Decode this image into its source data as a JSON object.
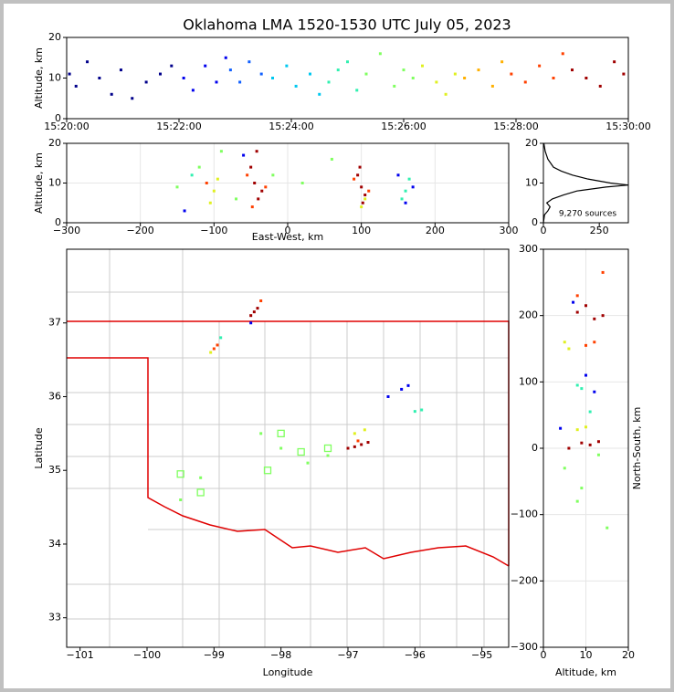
{
  "chart_data": [
    {
      "type": "scatter",
      "title": "Oklahoma LMA 1520-1530 UTC July 05, 2023",
      "ylabel": "Altitude, km",
      "xlim": [
        "15:20:00",
        "15:30:00"
      ],
      "xticks": [
        "15:20:00",
        "15:22:00",
        "15:24:00",
        "15:26:00",
        "15:28:00",
        "15:30:00"
      ],
      "ylim": [
        0,
        20
      ],
      "yticks": [
        0,
        10,
        20
      ],
      "series": [
        {
          "color": "#00008b",
          "x": [
            "15:20:03",
            "15:20:10",
            "15:20:22",
            "15:20:35",
            "15:20:48",
            "15:20:58",
            "15:21:10",
            "15:21:25",
            "15:21:40",
            "15:21:52"
          ],
          "y": [
            11,
            8,
            14,
            10,
            6,
            12,
            5,
            9,
            11,
            13
          ]
        },
        {
          "color": "#0000ee",
          "x": [
            "15:22:05",
            "15:22:15",
            "15:22:28",
            "15:22:40",
            "15:22:50"
          ],
          "y": [
            10,
            7,
            13,
            9,
            15
          ]
        },
        {
          "color": "#1060ff",
          "x": [
            "15:22:55",
            "15:23:05",
            "15:23:15",
            "15:23:28"
          ],
          "y": [
            12,
            9,
            14,
            11
          ]
        },
        {
          "color": "#00c8f0",
          "x": [
            "15:23:40",
            "15:23:55",
            "15:24:05",
            "15:24:20",
            "15:24:30"
          ],
          "y": [
            10,
            13,
            8,
            11,
            6
          ]
        },
        {
          "color": "#30f0b0",
          "x": [
            "15:24:40",
            "15:24:50",
            "15:25:00",
            "15:25:10"
          ],
          "y": [
            9,
            12,
            14,
            7
          ]
        },
        {
          "color": "#80ff60",
          "x": [
            "15:25:20",
            "15:25:35",
            "15:25:50",
            "15:26:00",
            "15:26:10"
          ],
          "y": [
            11,
            16,
            8,
            12,
            10
          ]
        },
        {
          "color": "#e0f020",
          "x": [
            "15:26:20",
            "15:26:35",
            "15:26:45",
            "15:26:55"
          ],
          "y": [
            13,
            9,
            6,
            11
          ]
        },
        {
          "color": "#ffb000",
          "x": [
            "15:27:05",
            "15:27:20",
            "15:27:35",
            "15:27:45"
          ],
          "y": [
            10,
            12,
            8,
            14
          ]
        },
        {
          "color": "#ff4000",
          "x": [
            "15:27:55",
            "15:28:10",
            "15:28:25",
            "15:28:40",
            "15:28:50"
          ],
          "y": [
            11,
            9,
            13,
            10,
            16
          ]
        },
        {
          "color": "#a00000",
          "x": [
            "15:29:00",
            "15:29:15",
            "15:29:30",
            "15:29:45",
            "15:29:55"
          ],
          "y": [
            12,
            10,
            8,
            14,
            11
          ]
        }
      ]
    },
    {
      "type": "scatter",
      "xlabel": "East-West, km",
      "ylabel": "Altitude, km",
      "xlim": [
        -300,
        300
      ],
      "xticks": [
        {
          "value": -300,
          "label": "−300"
        },
        {
          "value": -200,
          "label": "−200"
        },
        {
          "value": -100,
          "label": "−100"
        },
        0,
        100,
        200,
        300
      ],
      "ylim": [
        0,
        20
      ],
      "yticks": [
        0,
        10,
        20
      ],
      "grid": true,
      "series": [
        {
          "color": "#a00000",
          "x": [
            -45,
            -40,
            -50,
            -35,
            -42,
            100,
            95,
            105,
            98,
            102
          ],
          "y": [
            10,
            6,
            14,
            8,
            18,
            9,
            12,
            7,
            14,
            5
          ]
        },
        {
          "color": "#ff4000",
          "x": [
            -55,
            -30,
            -48,
            90,
            110,
            -110
          ],
          "y": [
            12,
            9,
            4,
            11,
            8,
            10
          ]
        },
        {
          "color": "#e0f020",
          "x": [
            -100,
            -95,
            -105,
            100,
            105
          ],
          "y": [
            8,
            11,
            5,
            4,
            6
          ]
        },
        {
          "color": "#80ff60",
          "x": [
            -120,
            -90,
            -70,
            -20,
            20,
            60,
            -150
          ],
          "y": [
            14,
            18,
            6,
            12,
            10,
            16,
            9
          ]
        },
        {
          "color": "#30f0b0",
          "x": [
            160,
            165,
            155,
            -130
          ],
          "y": [
            8,
            11,
            6,
            12
          ]
        },
        {
          "color": "#0000ee",
          "x": [
            160,
            170,
            150,
            -60,
            -140
          ],
          "y": [
            5,
            9,
            12,
            17,
            3
          ]
        }
      ]
    },
    {
      "type": "line",
      "annotation": "9,270 sources",
      "xlim": [
        0,
        380
      ],
      "xticks": [
        0,
        250
      ],
      "ylim": [
        0,
        20
      ],
      "yticks": [
        0,
        10,
        20
      ],
      "series": [
        {
          "color": "#000000",
          "x": [
            0,
            5,
            20,
            30,
            15,
            40,
            90,
            150,
            280,
            380,
            300,
            200,
            130,
            80,
            45,
            20,
            8,
            2
          ],
          "y": [
            0,
            2,
            3,
            4,
            5,
            6,
            7,
            8,
            9,
            9.5,
            10,
            11,
            12,
            13,
            14,
            16,
            18,
            20
          ]
        }
      ]
    },
    {
      "type": "scatter",
      "xlabel": "Longitude",
      "ylabel": "Latitude",
      "xlim": [
        -101.2,
        -94.6
      ],
      "xticks": [
        {
          "value": -101,
          "label": "−101"
        },
        {
          "value": -100,
          "label": "−100"
        },
        {
          "value": -99,
          "label": "−99"
        },
        {
          "value": -98,
          "label": "−98"
        },
        {
          "value": -97,
          "label": "−97"
        },
        {
          "value": -96,
          "label": "−96"
        },
        {
          "value": -95,
          "label": "−95"
        }
      ],
      "ylim": [
        32.6,
        38
      ],
      "yticks": [
        33,
        34,
        35,
        36,
        37
      ],
      "series": [
        {
          "color": "#a00000",
          "x": [
            -98.4,
            -98.35,
            -98.45,
            -96.8,
            -96.9,
            -96.7,
            -97.0
          ],
          "y": [
            37.15,
            37.2,
            37.1,
            35.35,
            35.32,
            35.38,
            35.3
          ]
        },
        {
          "color": "#ff4000",
          "x": [
            -99.0,
            -98.95,
            -98.3,
            -96.85
          ],
          "y": [
            36.65,
            36.7,
            37.3,
            35.4
          ]
        },
        {
          "color": "#e0f020",
          "x": [
            -96.75,
            -96.9,
            -99.05
          ],
          "y": [
            35.55,
            35.5,
            36.6
          ]
        },
        {
          "color": "#80ff60",
          "x": [
            -98.0,
            -97.6,
            -99.2,
            -98.3,
            -97.3,
            -99.5
          ],
          "y": [
            35.3,
            35.1,
            34.9,
            35.5,
            35.2,
            34.6
          ]
        },
        {
          "color": "#30f0b0",
          "x": [
            -96.0,
            -95.9,
            -98.9
          ],
          "y": [
            35.8,
            35.82,
            36.8
          ]
        },
        {
          "color": "#0000ee",
          "x": [
            -96.2,
            -96.1,
            -96.4,
            -98.45
          ],
          "y": [
            36.1,
            36.15,
            36.0,
            37.0
          ]
        },
        {
          "color": "#80ff60",
          "marker": "square-open",
          "x": [
            -98.0,
            -97.7,
            -99.5,
            -99.2,
            -97.3,
            -98.2
          ],
          "y": [
            35.5,
            35.25,
            34.95,
            34.7,
            35.3,
            35.0
          ]
        }
      ]
    },
    {
      "type": "scatter",
      "xlabel": "Altitude, km",
      "ylabel": "North-South, km",
      "xlim": [
        0,
        20
      ],
      "xticks": [
        0,
        10,
        20
      ],
      "ylim": [
        -300,
        300
      ],
      "yticks": [
        {
          "value": -300,
          "label": "−300"
        },
        {
          "value": -200,
          "label": "−200"
        },
        {
          "value": -100,
          "label": "−100"
        },
        0,
        100,
        200,
        300
      ],
      "grid": true,
      "series": [
        {
          "color": "#a00000",
          "x": [
            8,
            10,
            12,
            14,
            9,
            11,
            6,
            13
          ],
          "y": [
            205,
            215,
            195,
            200,
            8,
            5,
            0,
            10
          ]
        },
        {
          "color": "#ff4000",
          "x": [
            10,
            12,
            8,
            14
          ],
          "y": [
            155,
            160,
            230,
            265
          ]
        },
        {
          "color": "#e0f020",
          "x": [
            6,
            8,
            10,
            5
          ],
          "y": [
            150,
            28,
            32,
            160
          ]
        },
        {
          "color": "#80ff60",
          "x": [
            5,
            9,
            13,
            15,
            8
          ],
          "y": [
            -30,
            -60,
            -10,
            -120,
            -80
          ]
        },
        {
          "color": "#30f0b0",
          "x": [
            9,
            11,
            8
          ],
          "y": [
            90,
            55,
            95
          ]
        },
        {
          "color": "#0000ee",
          "x": [
            7,
            12,
            4,
            10
          ],
          "y": [
            220,
            85,
            30,
            110
          ]
        }
      ]
    }
  ]
}
